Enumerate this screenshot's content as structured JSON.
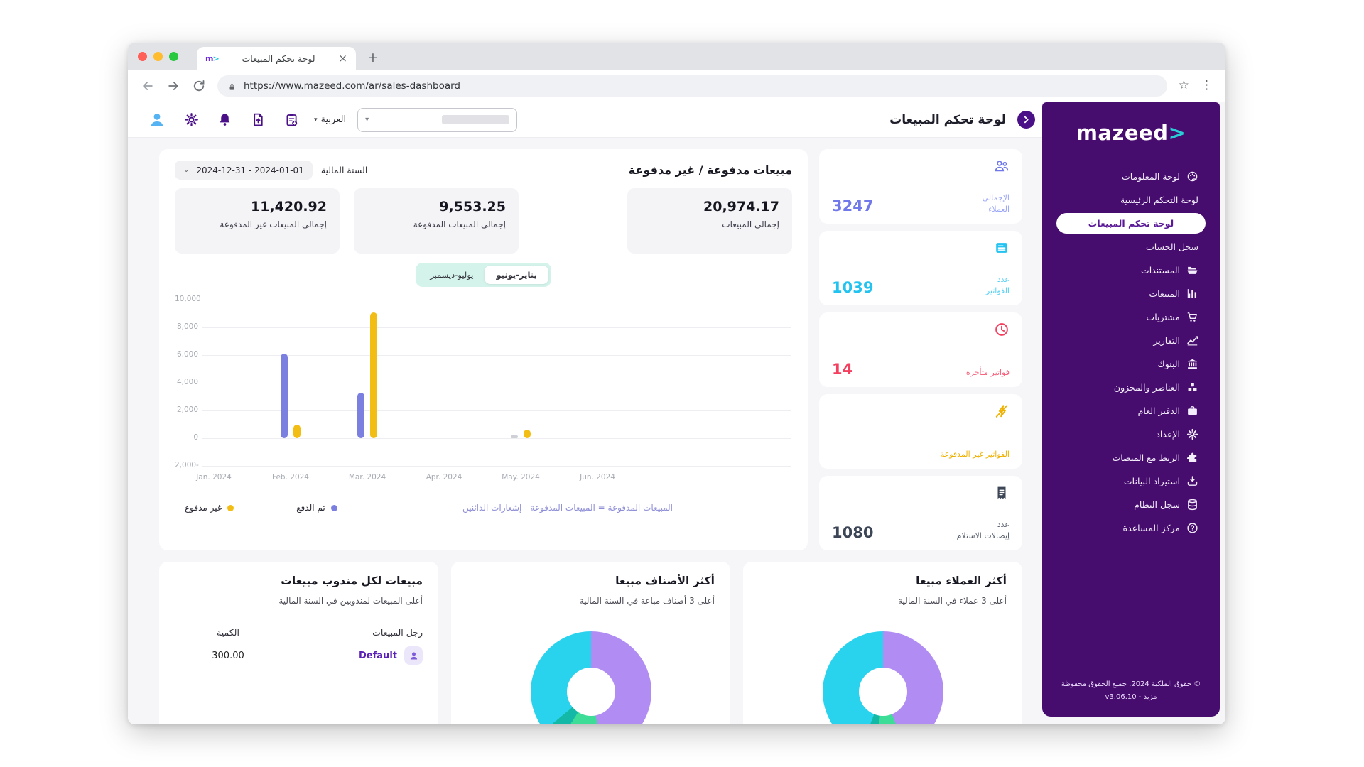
{
  "browser": {
    "tab": {
      "title": "لوحة تحكم المبيعات",
      "favicon_m": "m",
      "favicon_arrow": ">"
    },
    "url": "https://www.mazeed.com/ar/sales-dashboard",
    "new_tab_glyph": "+",
    "close_glyph": "×",
    "star_glyph": "☆",
    "menu_glyph": "⋮"
  },
  "header": {
    "page_title": "لوحة تحكم المبيعات",
    "language": "العربية",
    "caret_glyph": "▾"
  },
  "sidebar": {
    "logo_text": "mazeed",
    "logo_arrow": ">",
    "items": [
      {
        "label": "لوحة المعلومات",
        "icon": "dashboard-icon",
        "active": false
      },
      {
        "label": "لوحة التحكم الرئيسية",
        "icon": null,
        "active": false
      },
      {
        "label": "لوحة تحكم المبيعات",
        "icon": null,
        "active": true
      },
      {
        "label": "سجل الحساب",
        "icon": null,
        "active": false
      },
      {
        "label": "المستندات",
        "icon": "folder-icon",
        "active": false
      },
      {
        "label": "المبيعات",
        "icon": "bar-chart-icon",
        "active": false
      },
      {
        "label": "مشتريات",
        "icon": "cart-icon",
        "active": false
      },
      {
        "label": "التقارير",
        "icon": "line-chart-icon",
        "active": false
      },
      {
        "label": "البنوك",
        "icon": "bank-icon",
        "active": false
      },
      {
        "label": "العناصر والمخزون",
        "icon": "cubes-icon",
        "active": false
      },
      {
        "label": "الدفتر العام",
        "icon": "ledger-icon",
        "active": false
      },
      {
        "label": "الإعداد",
        "icon": "gear-icon",
        "active": false
      },
      {
        "label": "الربط مع المنصات",
        "icon": "puzzle-icon",
        "active": false
      },
      {
        "label": "استيراد البيانات",
        "icon": "import-icon",
        "active": false
      },
      {
        "label": "سجل النظام",
        "icon": "database-icon",
        "active": false
      },
      {
        "label": "مركز المساعدة",
        "icon": "help-icon",
        "active": false
      }
    ],
    "footer_line1": "© حقوق الملكية 2024. جميع الحقوق محفوظة",
    "footer_line2": "مزيد - v3.06.10"
  },
  "stats_cards": [
    {
      "id": "total-customers",
      "value": "3247",
      "label_lines": [
        "الإجمالي",
        "العملاء"
      ],
      "icon": "people-icon",
      "value_color": "#7078ea",
      "label_color": "#9aa6f7"
    },
    {
      "id": "invoice-count",
      "value": "1039",
      "label_lines": [
        "عدد",
        "الفواتير"
      ],
      "icon": "invoice-icon",
      "value_color": "#22c3f0",
      "label_color": "#55d0f4"
    },
    {
      "id": "late-invoices",
      "value": "14",
      "label_lines": [
        "فواتير متأخرة"
      ],
      "icon": "clock-icon",
      "value_color": "#f43f5e",
      "label_color": "#f8607c"
    },
    {
      "id": "unpaid-invoices",
      "value": "",
      "label_lines": [
        "الفواتير غير المدفوعة"
      ],
      "icon": "money-off-icon",
      "value_color": "#efb100",
      "label_color": "#efb100"
    },
    {
      "id": "receipt-count",
      "value": "1080",
      "label_lines": [
        "عدد",
        "إيصالات الاستلام"
      ],
      "icon": "receipt-icon",
      "value_color": "#3d4656",
      "label_color": "#59616f"
    }
  ],
  "sales_panel": {
    "title": "مبيعات مدفوعة / غير مدفوعة",
    "fiscal_label": "السنة المالية",
    "date_range": "2024-12-31 - 2024-01-01",
    "summary": [
      {
        "value": "20,974.17",
        "label": "إجمالي المبيعات"
      },
      {
        "value": "9,553.25",
        "label": "إجمالي المبيعات المدفوعة"
      },
      {
        "value": "11,420.92",
        "label": "إجمالي المبيعات غير المدفوعة"
      }
    ],
    "toggle": {
      "options": [
        "يناير-يونيو",
        "يوليو-ديسمبر"
      ],
      "active_index": 0
    },
    "legend": [
      {
        "label": "غير مدفوع",
        "color": "#f2be16"
      },
      {
        "label": "تم الدفع",
        "color": "#7b80e0"
      }
    ],
    "note": "المبيعات المدفوعة = المبيعات المدفوعة - إشعارات الدائنين"
  },
  "chart_data": {
    "type": "bar",
    "categories": [
      "Jan. 2024",
      "Feb. 2024",
      "Mar. 2024",
      "Apr. 2024",
      "May. 2024",
      "Jun. 2024"
    ],
    "series": [
      {
        "name": "تم الدفع",
        "color": "#7b80e0",
        "values": [
          null,
          6100,
          3300,
          null,
          0,
          null
        ]
      },
      {
        "name": "غير مدفوع",
        "color": "#f2be16",
        "values": [
          null,
          1000,
          9100,
          null,
          600,
          null
        ]
      }
    ],
    "ylim": [
      -2000,
      10000
    ],
    "yticks": [
      10000,
      8000,
      6000,
      4000,
      2000,
      0,
      -2000
    ],
    "ytick_labels": [
      "10,000",
      "8,000",
      "6,000",
      "4,000",
      "2,000",
      "0",
      "2,000-"
    ],
    "grid": true,
    "legend_position": "bottom",
    "zero_marker_color": "#cfd0d6"
  },
  "bottom_cards": {
    "top_customers": {
      "title": "أكثر العملاء مبيعا",
      "subtitle": "أعلى 3 عملاء في السنة المالية",
      "donut_slices": [
        {
          "name": "slice-1",
          "color": "#b18cf2",
          "pct": 44
        },
        {
          "name": "slice-2",
          "color": "#3ddc97",
          "pct": 8
        },
        {
          "name": "slice-3",
          "color": "#14b8a6",
          "pct": 4
        },
        {
          "name": "slice-4",
          "color": "#29d3ee",
          "pct": 44
        }
      ]
    },
    "top_items": {
      "title": "أكثر الأصناف مبيعا",
      "subtitle": "أعلى 3 أصناف مباعة في السنة المالية",
      "donut_slices": [
        {
          "name": "slice-1",
          "color": "#b18cf2",
          "pct": 47
        },
        {
          "name": "slice-2",
          "color": "#3ddc97",
          "pct": 12
        },
        {
          "name": "slice-3",
          "color": "#14b8a6",
          "pct": 5
        },
        {
          "name": "slice-4",
          "color": "#29d3ee",
          "pct": 36
        }
      ]
    },
    "sales_rep": {
      "title": "مبيعات لكل مندوب مبيعات",
      "subtitle": "أعلى المبيعات لمندوبين في السنة المالية",
      "columns": [
        "رجل المبيعات",
        "الكمية"
      ],
      "rows": [
        {
          "name": "Default",
          "qty": "300.00"
        }
      ]
    }
  }
}
